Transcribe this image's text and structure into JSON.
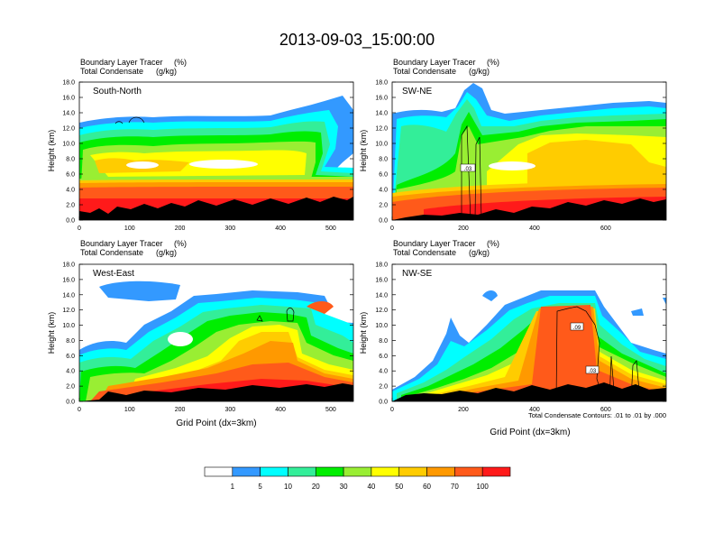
{
  "title": "2013-09-03_15:00:00",
  "subtitle_line1": "Boundary Layer Tracer",
  "subtitle_unit1": "(%)",
  "subtitle_line2": "Total Condensate",
  "subtitle_unit2": "(g/kg)",
  "y_label": "Height (km)",
  "x_label": "Grid Point (dx=3km)",
  "y_ticks": [
    "0.0",
    "2.0",
    "4.0",
    "6.0",
    "8.0",
    "10.0",
    "12.0",
    "14.0",
    "16.0",
    "18.0"
  ],
  "contour_note": "Total Condensate Contours: .01 to .01 by .000",
  "colors": {
    "white": "#ffffff",
    "blue": "#3399ff",
    "cyan": "#00ffff",
    "seagreen": "#33ee99",
    "green": "#00ee00",
    "lime": "#99ee33",
    "yellow": "#ffff00",
    "gold": "#ffcc00",
    "orange": "#ff9900",
    "red_orange": "#ff5a1a",
    "red": "#ff1a1a",
    "terrain": "#000000"
  },
  "chart_data": {
    "type": "heatmap",
    "levels": [
      "1",
      "5",
      "10",
      "20",
      "30",
      "40",
      "50",
      "60",
      "70",
      "100"
    ],
    "level_colors": [
      "#ffffff",
      "#3399ff",
      "#00ffff",
      "#33ee99",
      "#00ee00",
      "#99ee33",
      "#ffff00",
      "#ffcc00",
      "#ff9900",
      "#ff5a1a",
      "#ff1a1a"
    ],
    "ylim": [
      0,
      18
    ],
    "panels": [
      {
        "label": "South-North",
        "xlim": [
          0,
          545
        ],
        "x_ticks": [
          "0",
          "100",
          "200",
          "300",
          "400",
          "500"
        ],
        "x_tick_values": [
          0,
          100,
          200,
          300,
          400,
          500
        ],
        "marker_x": 275,
        "contour_labels": []
      },
      {
        "label": "SW-NE",
        "xlim": [
          0,
          770
        ],
        "x_ticks": [
          "0",
          "200",
          "400",
          "600"
        ],
        "x_tick_values": [
          0,
          200,
          400,
          600
        ],
        "marker_x": 390,
        "contour_labels": [
          ".03"
        ]
      },
      {
        "label": "West-East",
        "xlim": [
          0,
          545
        ],
        "x_ticks": [
          "0",
          "100",
          "200",
          "300",
          "400",
          "500"
        ],
        "x_tick_values": [
          0,
          100,
          200,
          300,
          400,
          500
        ],
        "marker_x": 275,
        "contour_labels": []
      },
      {
        "label": "NW-SE",
        "xlim": [
          0,
          770
        ],
        "x_ticks": [
          "0",
          "200",
          "400",
          "600"
        ],
        "x_tick_values": [
          0,
          200,
          400,
          600
        ],
        "marker_x": 390,
        "contour_labels": [
          ".09",
          ".03"
        ]
      }
    ]
  }
}
